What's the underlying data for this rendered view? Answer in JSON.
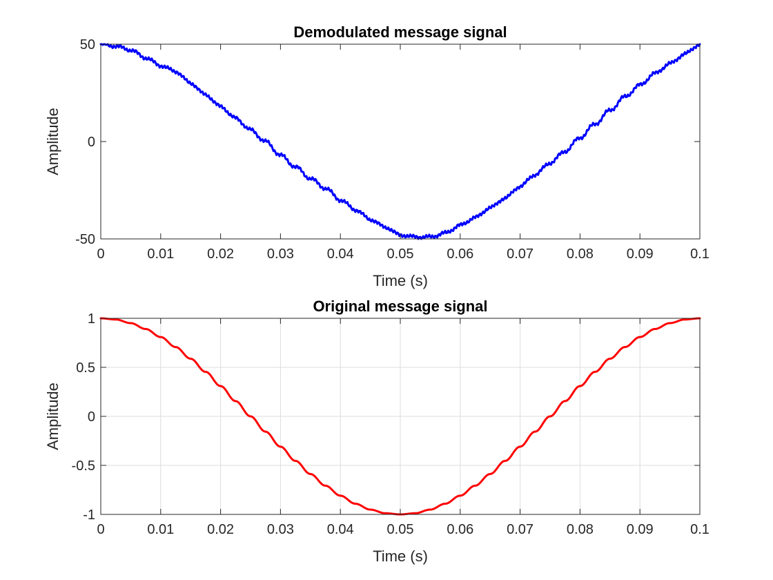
{
  "chart_data": [
    {
      "type": "line",
      "title": "Demodulated message signal",
      "xlabel": "Time (s)",
      "ylabel": "Amplitude",
      "xlim": [
        0,
        0.1
      ],
      "ylim": [
        -50,
        50
      ],
      "xticks": [
        0,
        0.01,
        0.02,
        0.03,
        0.04,
        0.05,
        0.06,
        0.07,
        0.08,
        0.09,
        0.1
      ],
      "xtick_labels": [
        "0",
        "0.01",
        "0.02",
        "0.03",
        "0.04",
        "0.05",
        "0.06",
        "0.07",
        "0.08",
        "0.09",
        "0.1"
      ],
      "yticks": [
        -50,
        0,
        50
      ],
      "ytick_labels": [
        "-50",
        "0",
        "50"
      ],
      "grid": false,
      "legend": "none",
      "series": [
        {
          "color": "#0000ff",
          "x": [
            0,
            0.0025,
            0.005,
            0.0075,
            0.01,
            0.0125,
            0.015,
            0.0175,
            0.02,
            0.0225,
            0.025,
            0.0275,
            0.03,
            0.0325,
            0.035,
            0.0375,
            0.04,
            0.0425,
            0.045,
            0.0475,
            0.05,
            0.0525,
            0.055,
            0.0575,
            0.06,
            0.0625,
            0.065,
            0.0675,
            0.07,
            0.0725,
            0.075,
            0.0775,
            0.08,
            0.0825,
            0.085,
            0.0875,
            0.09,
            0.0925,
            0.095,
            0.0975,
            0.1
          ],
          "y": [
            50,
            49,
            47,
            43,
            39,
            36,
            30,
            24,
            18,
            12,
            6,
            0,
            -7,
            -13,
            -19,
            -24,
            -30,
            -35,
            -40,
            -44,
            -48,
            -49,
            -49,
            -47,
            -43,
            -39,
            -34,
            -29,
            -23,
            -17,
            -11,
            -5,
            2,
            9,
            16,
            23,
            29,
            35,
            40,
            45,
            50
          ]
        }
      ]
    },
    {
      "type": "line",
      "title": "Original message signal",
      "xlabel": "Time (s)",
      "ylabel": "Amplitude",
      "xlim": [
        0,
        0.1
      ],
      "ylim": [
        -1,
        1
      ],
      "xticks": [
        0,
        0.01,
        0.02,
        0.03,
        0.04,
        0.05,
        0.06,
        0.07,
        0.08,
        0.09,
        0.1
      ],
      "xtick_labels": [
        "0",
        "0.01",
        "0.02",
        "0.03",
        "0.04",
        "0.05",
        "0.06",
        "0.07",
        "0.08",
        "0.09",
        "0.1"
      ],
      "yticks": [
        -1,
        -0.5,
        0,
        0.5,
        1
      ],
      "ytick_labels": [
        "-1",
        "-0.5",
        "0",
        "0.5",
        "1"
      ],
      "grid": true,
      "legend": "none",
      "series": [
        {
          "color": "#ff0000",
          "x": [
            0,
            0.0025,
            0.005,
            0.0075,
            0.01,
            0.0125,
            0.015,
            0.0175,
            0.02,
            0.0225,
            0.025,
            0.0275,
            0.03,
            0.0325,
            0.035,
            0.0375,
            0.04,
            0.0425,
            0.045,
            0.0475,
            0.05,
            0.0525,
            0.055,
            0.0575,
            0.06,
            0.0625,
            0.065,
            0.0675,
            0.07,
            0.0725,
            0.075,
            0.0775,
            0.08,
            0.0825,
            0.085,
            0.0875,
            0.09,
            0.0925,
            0.095,
            0.0975,
            0.1
          ],
          "y": [
            1,
            0.988,
            0.951,
            0.891,
            0.809,
            0.707,
            0.588,
            0.454,
            0.309,
            0.156,
            0,
            -0.156,
            -0.309,
            -0.454,
            -0.588,
            -0.707,
            -0.809,
            -0.891,
            -0.951,
            -0.988,
            -1,
            -0.988,
            -0.951,
            -0.891,
            -0.809,
            -0.707,
            -0.588,
            -0.454,
            -0.309,
            -0.156,
            0,
            0.156,
            0.309,
            0.454,
            0.588,
            0.707,
            0.809,
            0.891,
            0.951,
            0.988,
            1
          ]
        }
      ]
    }
  ]
}
